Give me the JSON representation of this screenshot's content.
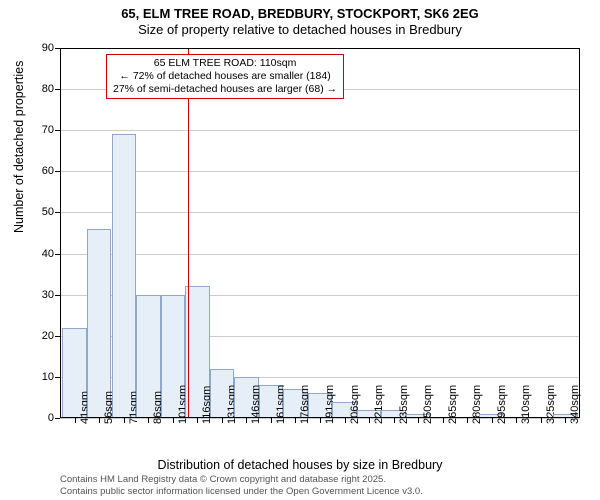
{
  "title": {
    "line1": "65, ELM TREE ROAD, BREDBURY, STOCKPORT, SK6 2EG",
    "line2": "Size of property relative to detached houses in Bredbury"
  },
  "axes": {
    "y_title": "Number of detached properties",
    "x_title": "Distribution of detached houses by size in Bredbury",
    "y_min": 0,
    "y_max": 90,
    "y_ticks": [
      0,
      10,
      20,
      30,
      40,
      50,
      60,
      70,
      80,
      90
    ],
    "title_fontsize": 12.5,
    "tick_fontsize": 11
  },
  "bars": {
    "tick_start": 41,
    "tick_step": 15,
    "tick_count": 21,
    "categories": [
      "41sqm",
      "56sqm",
      "71sqm",
      "86sqm",
      "101sqm",
      "116sqm",
      "131sqm",
      "146sqm",
      "161sqm",
      "176sqm",
      "191sqm",
      "206sqm",
      "221sqm",
      "235sqm",
      "250sqm",
      "265sqm",
      "280sqm",
      "295sqm",
      "310sqm",
      "325sqm",
      "340sqm"
    ],
    "values": [
      22,
      46,
      69,
      30,
      30,
      32,
      12,
      10,
      8,
      7,
      6,
      4,
      2,
      2,
      1,
      0,
      0,
      1,
      0,
      0,
      1
    ],
    "fill_color": "#e6eef8",
    "border_color": "#8fa8c8"
  },
  "reference": {
    "value": 110,
    "color": "#cc0000",
    "annotation_line1": "65 ELM TREE ROAD: 110sqm",
    "annotation_line2": "← 72% of detached houses are smaller (184)",
    "annotation_line3": "27% of semi-detached houses are larger (68) →"
  },
  "style": {
    "background": "#ffffff",
    "grid_color": "#cccccc",
    "text_color": "#000000",
    "annotation_fontsize": 10.5,
    "license_color": "#555555",
    "license_fontsize": 9.5
  },
  "license": {
    "line1": "Contains HM Land Registry data © Crown copyright and database right 2025.",
    "line2": "Contains public sector information licensed under the Open Government Licence v3.0."
  }
}
